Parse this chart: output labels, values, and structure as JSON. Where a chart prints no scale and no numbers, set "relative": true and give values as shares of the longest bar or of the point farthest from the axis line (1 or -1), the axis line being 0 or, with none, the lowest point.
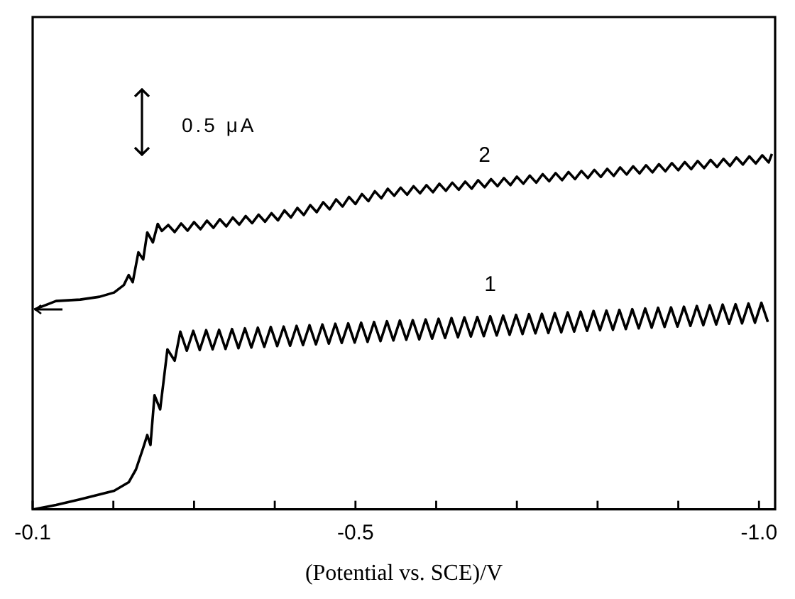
{
  "chart_data": {
    "type": "line",
    "relative": true,
    "xlabel": "(Potential vs. SCE)/V",
    "xlim": [
      -0.1,
      -1.02
    ],
    "xticks": [
      {
        "value": -0.1,
        "label": "-0.1"
      },
      {
        "value": -0.2,
        "label": null
      },
      {
        "value": -0.3,
        "label": null
      },
      {
        "value": -0.4,
        "label": null
      },
      {
        "value": -0.5,
        "label": "-0.5"
      },
      {
        "value": -0.6,
        "label": null
      },
      {
        "value": -0.7,
        "label": null
      },
      {
        "value": -0.8,
        "label": null
      },
      {
        "value": -0.9,
        "label": null
      },
      {
        "value": -1.0,
        "label": "-1.0"
      }
    ],
    "annotations": [
      "0.5 μA"
    ],
    "grid": false,
    "legend": false,
    "marker": "none",
    "line_style": "solid",
    "tick_labels": "x",
    "series": [
      {
        "name": "1",
        "color": "#000000",
        "x": [
          -0.102,
          -0.129,
          -0.159,
          -0.201,
          -0.219,
          -0.228,
          -0.237,
          -0.242,
          -0.246,
          -0.251,
          -0.258,
          -0.267,
          -0.276,
          -0.283,
          -0.291,
          -0.299,
          -0.307,
          -0.315,
          -0.323,
          -0.331,
          -0.339,
          -0.347,
          -0.355,
          -0.363,
          -0.371,
          -0.379,
          -0.387,
          -0.395,
          -0.403,
          -0.411,
          -0.419,
          -0.427,
          -0.435,
          -0.443,
          -0.451,
          -0.459,
          -0.467,
          -0.475,
          -0.483,
          -0.491,
          -0.499,
          -0.507,
          -0.515,
          -0.523,
          -0.531,
          -0.539,
          -0.547,
          -0.555,
          -0.563,
          -0.571,
          -0.579,
          -0.587,
          -0.595,
          -0.603,
          -0.611,
          -0.619,
          -0.627,
          -0.635,
          -0.643,
          -0.651,
          -0.659,
          -0.667,
          -0.675,
          -0.683,
          -0.691,
          -0.699,
          -0.707,
          -0.715,
          -0.723,
          -0.731,
          -0.739,
          -0.747,
          -0.755,
          -0.763,
          -0.771,
          -0.779,
          -0.787,
          -0.795,
          -0.803,
          -0.811,
          -0.819,
          -0.827,
          -0.835,
          -0.843,
          -0.851,
          -0.859,
          -0.867,
          -0.875,
          -0.883,
          -0.891,
          -0.899,
          -0.907,
          -0.915,
          -0.923,
          -0.931,
          -0.939,
          -0.947,
          -0.955,
          -0.963,
          -0.971,
          -0.979,
          -0.987,
          -0.995,
          -1.003,
          -1.011
        ],
        "values": [
          0,
          0.012,
          0.028,
          0.052,
          0.076,
          0.112,
          0.173,
          0.209,
          0.181,
          0.321,
          0.281,
          0.45,
          0.418,
          0.5,
          0.446,
          0.502,
          0.448,
          0.504,
          0.45,
          0.505,
          0.451,
          0.507,
          0.453,
          0.509,
          0.455,
          0.511,
          0.457,
          0.513,
          0.459,
          0.514,
          0.46,
          0.516,
          0.462,
          0.518,
          0.464,
          0.52,
          0.466,
          0.522,
          0.468,
          0.523,
          0.469,
          0.525,
          0.471,
          0.527,
          0.473,
          0.529,
          0.475,
          0.531,
          0.477,
          0.532,
          0.478,
          0.534,
          0.48,
          0.536,
          0.482,
          0.538,
          0.484,
          0.54,
          0.486,
          0.541,
          0.487,
          0.543,
          0.489,
          0.545,
          0.491,
          0.547,
          0.493,
          0.549,
          0.495,
          0.55,
          0.496,
          0.552,
          0.498,
          0.554,
          0.5,
          0.556,
          0.502,
          0.558,
          0.504,
          0.559,
          0.505,
          0.561,
          0.507,
          0.563,
          0.509,
          0.565,
          0.511,
          0.567,
          0.513,
          0.568,
          0.514,
          0.57,
          0.516,
          0.572,
          0.518,
          0.574,
          0.52,
          0.576,
          0.522,
          0.577,
          0.523,
          0.579,
          0.525,
          0.581,
          0.527
        ]
      },
      {
        "name": "2",
        "color": "#000000",
        "x": [
          -0.102,
          -0.129,
          -0.159,
          -0.183,
          -0.201,
          -0.213,
          -0.219,
          -0.224,
          -0.231,
          -0.237,
          -0.242,
          -0.249,
          -0.255,
          -0.26,
          -0.268,
          -0.276,
          -0.284,
          -0.292,
          -0.3,
          -0.308,
          -0.316,
          -0.324,
          -0.332,
          -0.34,
          -0.348,
          -0.356,
          -0.364,
          -0.372,
          -0.38,
          -0.388,
          -0.396,
          -0.404,
          -0.412,
          -0.42,
          -0.428,
          -0.436,
          -0.444,
          -0.452,
          -0.46,
          -0.468,
          -0.476,
          -0.484,
          -0.492,
          -0.5,
          -0.508,
          -0.516,
          -0.524,
          -0.532,
          -0.54,
          -0.548,
          -0.556,
          -0.564,
          -0.572,
          -0.58,
          -0.588,
          -0.596,
          -0.604,
          -0.612,
          -0.62,
          -0.628,
          -0.636,
          -0.644,
          -0.652,
          -0.66,
          -0.668,
          -0.676,
          -0.684,
          -0.692,
          -0.7,
          -0.708,
          -0.716,
          -0.724,
          -0.732,
          -0.74,
          -0.748,
          -0.756,
          -0.764,
          -0.772,
          -0.78,
          -0.788,
          -0.796,
          -0.804,
          -0.812,
          -0.82,
          -0.828,
          -0.836,
          -0.844,
          -0.852,
          -0.86,
          -0.868,
          -0.876,
          -0.884,
          -0.892,
          -0.9,
          -0.908,
          -0.916,
          -0.924,
          -0.932,
          -0.94,
          -0.948,
          -0.956,
          -0.964,
          -0.972,
          -0.98,
          -0.988,
          -0.996,
          -1.004,
          -1.012,
          -1.016
        ],
        "values": [
          0.562,
          0.586,
          0.59,
          0.598,
          0.61,
          0.631,
          0.659,
          0.639,
          0.723,
          0.703,
          0.779,
          0.751,
          0.803,
          0.783,
          0.8,
          0.78,
          0.804,
          0.784,
          0.808,
          0.788,
          0.812,
          0.792,
          0.816,
          0.796,
          0.821,
          0.801,
          0.825,
          0.805,
          0.829,
          0.809,
          0.833,
          0.813,
          0.841,
          0.821,
          0.848,
          0.828,
          0.856,
          0.836,
          0.864,
          0.844,
          0.872,
          0.852,
          0.879,
          0.859,
          0.887,
          0.867,
          0.895,
          0.875,
          0.902,
          0.882,
          0.905,
          0.885,
          0.909,
          0.889,
          0.912,
          0.892,
          0.916,
          0.896,
          0.919,
          0.899,
          0.922,
          0.902,
          0.926,
          0.906,
          0.929,
          0.909,
          0.932,
          0.912,
          0.936,
          0.916,
          0.939,
          0.919,
          0.943,
          0.923,
          0.946,
          0.926,
          0.949,
          0.929,
          0.952,
          0.932,
          0.955,
          0.935,
          0.958,
          0.938,
          0.962,
          0.942,
          0.965,
          0.945,
          0.968,
          0.948,
          0.971,
          0.951,
          0.974,
          0.954,
          0.977,
          0.957,
          0.98,
          0.96,
          0.983,
          0.963,
          0.986,
          0.966,
          0.99,
          0.97,
          0.993,
          0.973,
          0.996,
          0.976,
          1.0
        ]
      }
    ]
  }
}
